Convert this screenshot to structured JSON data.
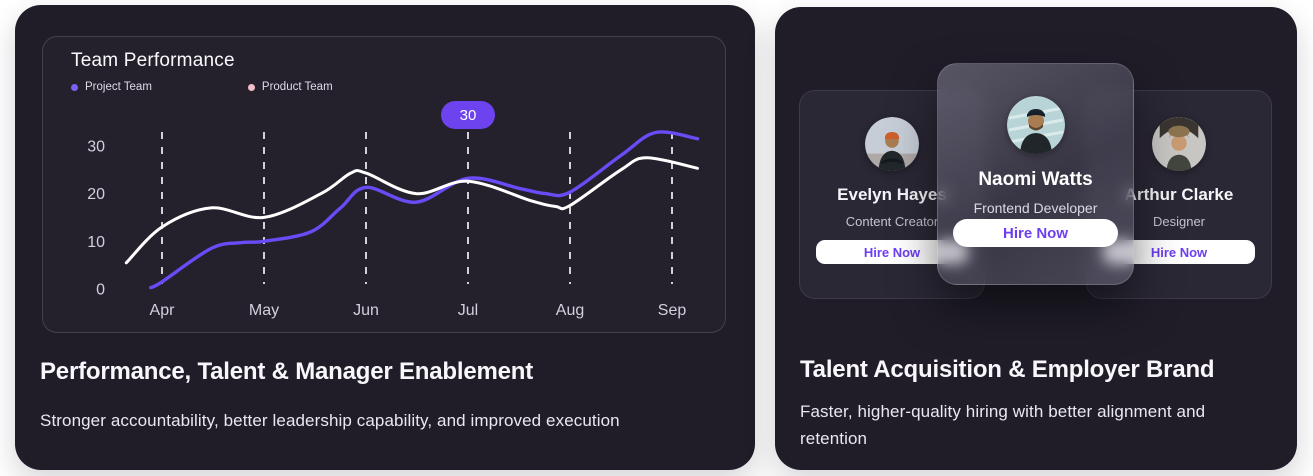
{
  "colors": {
    "accent": "#6d3ef2",
    "card_background": "#201d29",
    "project_line": "#6b4bf5",
    "product_line": "#ffffff",
    "legend_project_dot": "#7e5ffa",
    "legend_product_dot": "#f2bfc9",
    "badge_background": "#6d43f0"
  },
  "left_card": {
    "chart": {
      "title": "Team Performance",
      "legend": [
        {
          "label": "Project Team",
          "color": "#7e5ffa"
        },
        {
          "label": "Product Team",
          "color": "#f2bfc9"
        }
      ]
    },
    "heading": "Performance, Talent & Manager Enablement",
    "subheading": "Stronger accountability, better leadership capability, and improved execution"
  },
  "chart_data": {
    "type": "line",
    "title": "Team Performance",
    "categories": [
      "Apr",
      "May",
      "Jun",
      "Jul",
      "Aug",
      "Sep"
    ],
    "yticks": [
      0,
      10,
      20,
      30
    ],
    "ylim": [
      0,
      33
    ],
    "grid": "dashed-vertical",
    "legend_position": "top-left",
    "annotation": {
      "label": "30",
      "category": "Jul"
    },
    "series": [
      {
        "name": "Project Team",
        "color": "#6b4bf5",
        "values": [
          2,
          10,
          21,
          23,
          20,
          33
        ]
      },
      {
        "name": "Product Team",
        "color": "#ffffff",
        "values": [
          13,
          15,
          24,
          23,
          18,
          27
        ]
      }
    ],
    "curves": [
      {
        "name": "Project Team",
        "color": "#6b4bf5",
        "width": 3.4,
        "points": [
          [
            -0.11,
            0.3
          ],
          [
            0,
            1.5
          ],
          [
            0.48,
            8.5
          ],
          [
            0.77,
            9.7
          ],
          [
            1,
            10
          ],
          [
            1.46,
            12
          ],
          [
            1.75,
            17
          ],
          [
            2,
            21.3
          ],
          [
            2.49,
            18.2
          ],
          [
            3,
            23.2
          ],
          [
            3.52,
            21
          ],
          [
            3.76,
            20
          ],
          [
            4,
            20.3
          ],
          [
            4.5,
            28
          ],
          [
            4.84,
            32.8
          ],
          [
            5.25,
            31.5
          ]
        ]
      },
      {
        "name": "Product Team",
        "color": "#ffffff",
        "width": 3,
        "points": [
          [
            -0.35,
            5.5
          ],
          [
            0,
            13
          ],
          [
            0.48,
            17
          ],
          [
            1,
            15
          ],
          [
            1.56,
            20
          ],
          [
            1.85,
            24.3
          ],
          [
            2,
            24.3
          ],
          [
            2.49,
            20
          ],
          [
            3,
            22.6
          ],
          [
            3.62,
            18.5
          ],
          [
            3.86,
            17.3
          ],
          [
            4,
            17.5
          ],
          [
            4.5,
            25
          ],
          [
            4.75,
            27.5
          ],
          [
            5.25,
            25.3
          ]
        ]
      }
    ]
  },
  "right_card": {
    "profiles": [
      {
        "name": "Evelyn Hayes",
        "role": "Content Creator",
        "button": "Hire Now"
      },
      {
        "name": "Naomi Watts",
        "role": "Frontend Developer",
        "button": "Hire Now"
      },
      {
        "name": "Arthur Clarke",
        "role": "Designer",
        "button": "Hire Now"
      }
    ],
    "heading": "Talent Acquisition & Employer Brand",
    "subheading": "Faster, higher-quality hiring with better alignment and retention"
  }
}
